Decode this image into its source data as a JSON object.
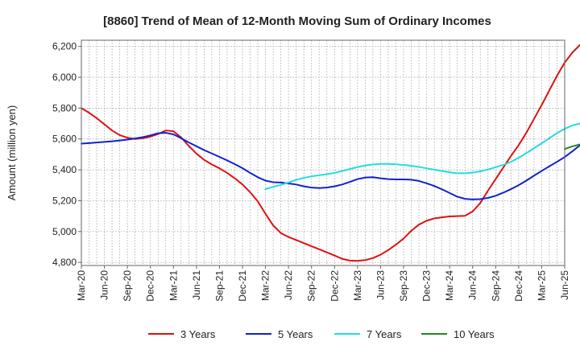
{
  "chart_data": {
    "type": "line",
    "title": "[8860]  Trend of Mean of 12-Month Moving Sum of Ordinary Incomes",
    "xlabel": "",
    "ylabel": "Amount (million yen)",
    "ylim": [
      4780,
      6240
    ],
    "yticks": [
      4800,
      5000,
      5200,
      5400,
      5600,
      5800,
      6000,
      6200
    ],
    "ytick_labels": [
      "4,800",
      "5,000",
      "5,200",
      "5,400",
      "5,600",
      "5,800",
      "6,000",
      "6,200"
    ],
    "xtick_labels": [
      "Mar-20",
      "Jun-20",
      "Sep-20",
      "Dec-20",
      "Mar-21",
      "Jun-21",
      "Sep-21",
      "Dec-21",
      "Mar-22",
      "Jun-22",
      "Sep-22",
      "Dec-22",
      "Mar-23",
      "Jun-23",
      "Sep-23",
      "Dec-23",
      "Mar-24",
      "Jun-24",
      "Sep-24",
      "Dec-24",
      "Mar-25",
      "Jun-25"
    ],
    "x_start": "Mar-20",
    "grid": true,
    "legend_position": "bottom",
    "series": [
      {
        "name": "3 Years",
        "color": "#dd1111",
        "start_index": 0,
        "values": [
          5800,
          5770,
          5735,
          5695,
          5655,
          5625,
          5608,
          5600,
          5605,
          5615,
          5632,
          5655,
          5650,
          5610,
          5555,
          5505,
          5465,
          5435,
          5410,
          5380,
          5345,
          5305,
          5255,
          5195,
          5115,
          5040,
          4990,
          4965,
          4945,
          4925,
          4905,
          4885,
          4865,
          4845,
          4823,
          4812,
          4810,
          4815,
          4828,
          4850,
          4880,
          4915,
          4955,
          5005,
          5045,
          5070,
          5085,
          5092,
          5098,
          5100,
          5102,
          5130,
          5185,
          5265,
          5340,
          5415,
          5490,
          5560,
          5640,
          5730,
          5820,
          5915,
          6010,
          6095,
          6160,
          6210
        ]
      },
      {
        "name": "5 Years",
        "color": "#1122cc",
        "start_index": 0,
        "values": [
          5570,
          5573,
          5577,
          5581,
          5585,
          5590,
          5596,
          5603,
          5612,
          5623,
          5637,
          5640,
          5630,
          5605,
          5578,
          5553,
          5528,
          5506,
          5484,
          5461,
          5437,
          5411,
          5380,
          5352,
          5330,
          5320,
          5318,
          5312,
          5305,
          5293,
          5285,
          5282,
          5285,
          5293,
          5305,
          5322,
          5340,
          5350,
          5352,
          5345,
          5340,
          5338,
          5338,
          5336,
          5328,
          5313,
          5295,
          5274,
          5250,
          5226,
          5212,
          5208,
          5210,
          5218,
          5232,
          5252,
          5275,
          5301,
          5330,
          5362,
          5393,
          5423,
          5452,
          5483,
          5520,
          5560
        ]
      },
      {
        "name": "7 Years",
        "color": "#22dddd",
        "start_index": 24,
        "values": [
          5275,
          5290,
          5302,
          5318,
          5335,
          5348,
          5358,
          5365,
          5372,
          5380,
          5392,
          5405,
          5418,
          5428,
          5435,
          5438,
          5438,
          5436,
          5432,
          5426,
          5419,
          5410,
          5401,
          5392,
          5384,
          5378,
          5378,
          5382,
          5390,
          5402,
          5417,
          5432,
          5452,
          5478,
          5508,
          5540,
          5572,
          5605,
          5638,
          5666,
          5688,
          5700
        ]
      },
      {
        "name": "10 Years",
        "color": "#228822",
        "start_index": 63,
        "values": [
          5535,
          5552,
          5565
        ]
      }
    ]
  }
}
